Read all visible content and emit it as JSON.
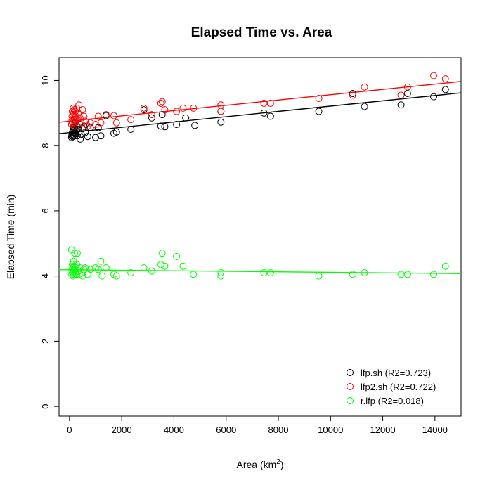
{
  "chart_data": {
    "type": "scatter",
    "title": "Elapsed Time vs. Area",
    "xlabel_main": "Area (km",
    "xlabel_sup": "2",
    "xlabel_close": ")",
    "ylabel": "Elapsed Time (min)",
    "xlim": [
      -400,
      15000
    ],
    "ylim": [
      -0.3,
      10.7
    ],
    "x_ticks": [
      0,
      2000,
      4000,
      6000,
      8000,
      10000,
      12000,
      14000
    ],
    "y_ticks": [
      0,
      2,
      4,
      6,
      8,
      10
    ],
    "grid": false,
    "legend_position": "bottom-right",
    "series": [
      {
        "name": "lfp.sh",
        "label": "lfp.sh (R2=0.723)",
        "color": "#000000",
        "fit": {
          "intercept": 8.4,
          "slope": 8.13e-05
        },
        "points": [
          [
            80,
            8.25
          ],
          [
            90,
            8.3
          ],
          [
            100,
            8.35
          ],
          [
            110,
            8.4
          ],
          [
            120,
            8.28
          ],
          [
            130,
            8.45
          ],
          [
            140,
            8.5
          ],
          [
            150,
            8.32
          ],
          [
            160,
            8.55
          ],
          [
            170,
            8.6
          ],
          [
            180,
            8.38
          ],
          [
            190,
            8.42
          ],
          [
            200,
            8.3
          ],
          [
            210,
            8.5
          ],
          [
            220,
            8.7
          ],
          [
            240,
            8.36
          ],
          [
            260,
            8.45
          ],
          [
            280,
            8.6
          ],
          [
            300,
            8.3
          ],
          [
            320,
            8.5
          ],
          [
            350,
            8.42
          ],
          [
            380,
            8.65
          ],
          [
            410,
            8.2
          ],
          [
            450,
            8.35
          ],
          [
            500,
            8.52
          ],
          [
            550,
            8.6
          ],
          [
            600,
            8.4
          ],
          [
            700,
            8.28
          ],
          [
            800,
            8.55
          ],
          [
            1000,
            8.25
          ],
          [
            1100,
            8.55
          ],
          [
            1200,
            8.3
          ],
          [
            1400,
            8.92
          ],
          [
            1700,
            8.38
          ],
          [
            1800,
            8.42
          ],
          [
            2350,
            8.5
          ],
          [
            2850,
            9.1
          ],
          [
            3150,
            8.85
          ],
          [
            3500,
            8.6
          ],
          [
            3550,
            8.95
          ],
          [
            3650,
            8.58
          ],
          [
            4100,
            8.65
          ],
          [
            4450,
            8.85
          ],
          [
            4800,
            8.62
          ],
          [
            5800,
            8.72
          ],
          [
            5800,
            9.05
          ],
          [
            7450,
            9.0
          ],
          [
            7700,
            8.9
          ],
          [
            9550,
            9.05
          ],
          [
            10850,
            9.6
          ],
          [
            11300,
            9.2
          ],
          [
            12700,
            9.25
          ],
          [
            12950,
            9.6
          ],
          [
            13950,
            9.5
          ],
          [
            14400,
            9.72
          ]
        ]
      },
      {
        "name": "lfp2.sh",
        "label": "lfp2.sh (R2=0.722)",
        "color": "#ff0000",
        "fit": {
          "intercept": 8.75,
          "slope": 8.13e-05
        },
        "points": [
          [
            80,
            8.65
          ],
          [
            90,
            8.75
          ],
          [
            100,
            8.9
          ],
          [
            110,
            9.05
          ],
          [
            120,
            8.7
          ],
          [
            130,
            8.95
          ],
          [
            140,
            9.15
          ],
          [
            150,
            8.8
          ],
          [
            160,
            9.0
          ],
          [
            170,
            8.6
          ],
          [
            180,
            9.1
          ],
          [
            190,
            8.85
          ],
          [
            200,
            8.7
          ],
          [
            220,
            9.05
          ],
          [
            240,
            8.9
          ],
          [
            260,
            8.75
          ],
          [
            280,
            9.15
          ],
          [
            300,
            8.8
          ],
          [
            330,
            9.0
          ],
          [
            360,
            9.25
          ],
          [
            400,
            8.85
          ],
          [
            450,
            8.7
          ],
          [
            500,
            9.1
          ],
          [
            550,
            8.9
          ],
          [
            600,
            8.75
          ],
          [
            700,
            8.6
          ],
          [
            800,
            8.7
          ],
          [
            1000,
            8.65
          ],
          [
            1100,
            8.9
          ],
          [
            1200,
            8.7
          ],
          [
            1400,
            8.95
          ],
          [
            1700,
            8.92
          ],
          [
            1800,
            8.7
          ],
          [
            2350,
            8.8
          ],
          [
            2850,
            9.15
          ],
          [
            3150,
            8.95
          ],
          [
            3500,
            9.3
          ],
          [
            3550,
            9.35
          ],
          [
            3650,
            9.1
          ],
          [
            4100,
            9.05
          ],
          [
            4350,
            9.15
          ],
          [
            4750,
            9.15
          ],
          [
            5800,
            9.25
          ],
          [
            5800,
            9.05
          ],
          [
            7450,
            9.3
          ],
          [
            7700,
            9.3
          ],
          [
            9550,
            9.45
          ],
          [
            10850,
            9.55
          ],
          [
            11300,
            9.8
          ],
          [
            12700,
            9.55
          ],
          [
            12950,
            9.8
          ],
          [
            13950,
            10.15
          ],
          [
            14400,
            10.05
          ]
        ]
      },
      {
        "name": "r.lfp",
        "label": "r.lfp (R2=0.018)",
        "color": "#00ff00",
        "fit": {
          "intercept": 4.19,
          "slope": -7.8e-06
        },
        "points": [
          [
            80,
            4.8
          ],
          [
            90,
            4.05
          ],
          [
            100,
            4.2
          ],
          [
            110,
            4.35
          ],
          [
            120,
            4.1
          ],
          [
            130,
            4.25
          ],
          [
            140,
            4.0
          ],
          [
            150,
            4.45
          ],
          [
            160,
            4.15
          ],
          [
            170,
            4.3
          ],
          [
            180,
            4.05
          ],
          [
            190,
            4.2
          ],
          [
            200,
            4.7
          ],
          [
            220,
            4.1
          ],
          [
            240,
            4.25
          ],
          [
            260,
            4.05
          ],
          [
            280,
            4.35
          ],
          [
            300,
            4.7
          ],
          [
            330,
            4.15
          ],
          [
            360,
            4.05
          ],
          [
            400,
            4.25
          ],
          [
            450,
            4.1
          ],
          [
            500,
            4.0
          ],
          [
            550,
            4.2
          ],
          [
            600,
            4.25
          ],
          [
            700,
            4.05
          ],
          [
            800,
            4.2
          ],
          [
            1000,
            4.25
          ],
          [
            1100,
            4.2
          ],
          [
            1200,
            4.45
          ],
          [
            1250,
            4.0
          ],
          [
            1400,
            4.25
          ],
          [
            1700,
            4.05
          ],
          [
            1800,
            4.0
          ],
          [
            2350,
            4.1
          ],
          [
            2850,
            4.25
          ],
          [
            3150,
            4.15
          ],
          [
            3500,
            4.35
          ],
          [
            3550,
            4.7
          ],
          [
            3650,
            4.3
          ],
          [
            4100,
            4.6
          ],
          [
            4350,
            4.3
          ],
          [
            4750,
            4.05
          ],
          [
            5800,
            4.1
          ],
          [
            5800,
            4.0
          ],
          [
            7450,
            4.1
          ],
          [
            7700,
            4.1
          ],
          [
            9550,
            4.0
          ],
          [
            10850,
            4.05
          ],
          [
            11300,
            4.1
          ],
          [
            12700,
            4.05
          ],
          [
            12950,
            4.05
          ],
          [
            13950,
            4.05
          ],
          [
            14400,
            4.3
          ]
        ]
      }
    ]
  }
}
